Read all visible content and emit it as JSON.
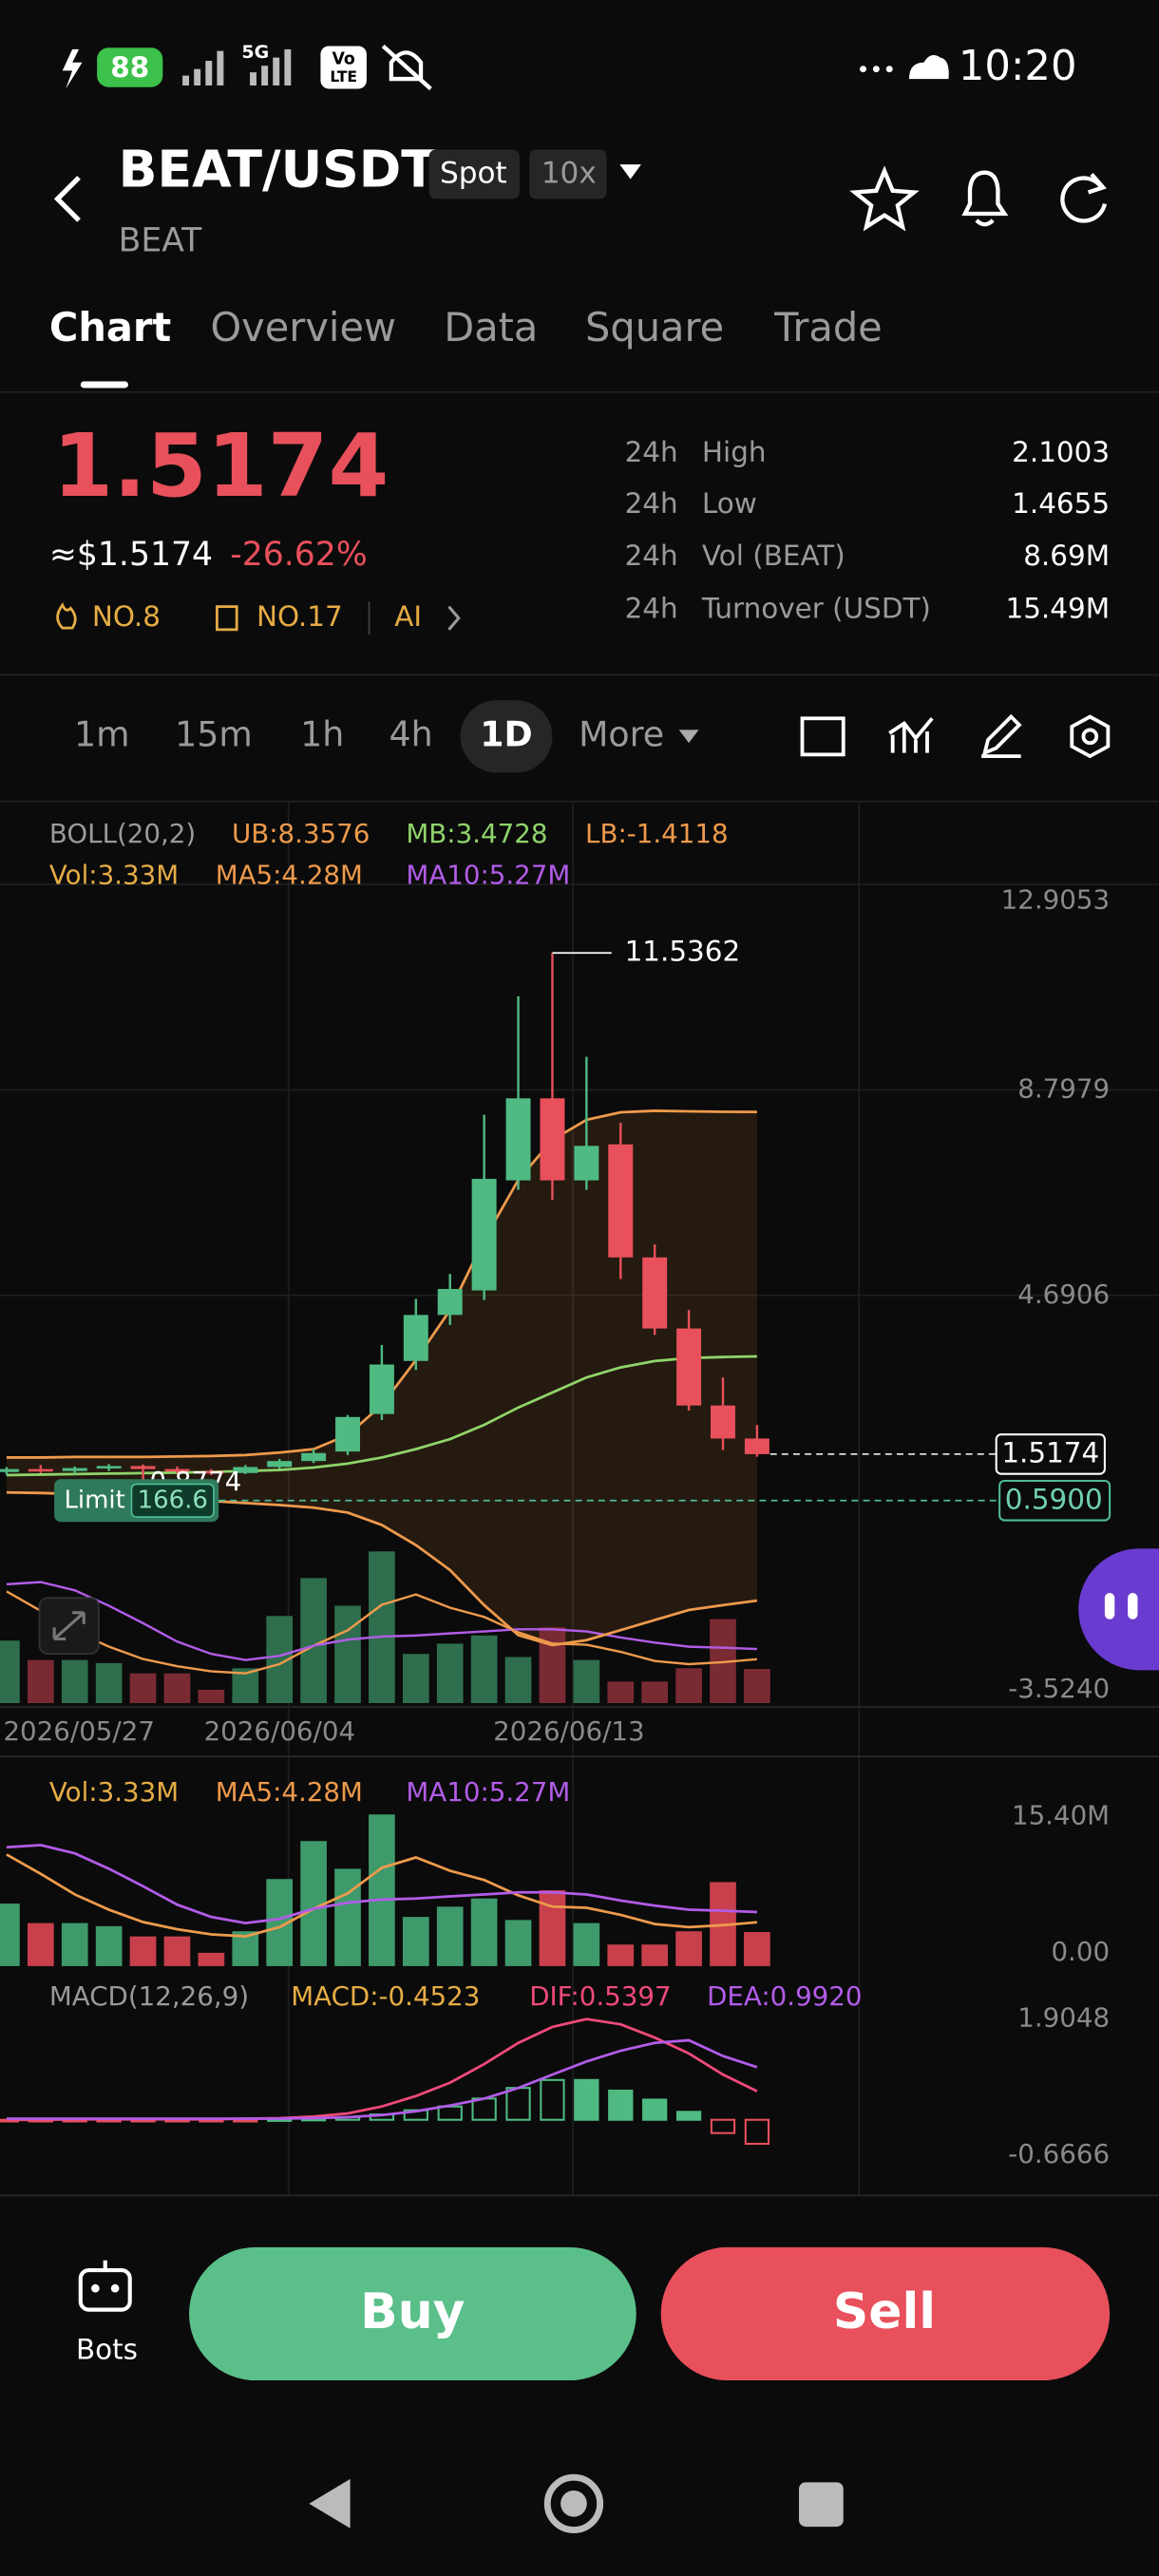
{
  "status_bar": {
    "battery": "88",
    "network": "5G",
    "volte_top": "Vo",
    "volte_bottom": "LTE",
    "time": "10:20"
  },
  "header": {
    "title": "BEAT/USDT",
    "market": "Spot",
    "leverage": "10x",
    "base": "BEAT"
  },
  "tabs": [
    "Chart",
    "Overview",
    "Data",
    "Square",
    "Trade"
  ],
  "ticker": {
    "price": 1.5174,
    "usd_price": "≈$1.5174",
    "change": "-26.62%",
    "rank_hot": "NO.8",
    "rank_category": "NO.17",
    "ai": "AI",
    "stats": [
      {
        "period": "24h",
        "label": "High",
        "value": 2.1003
      },
      {
        "period": "24h",
        "label": "Low",
        "value": 1.4655
      },
      {
        "period": "24h",
        "label": "Vol (BEAT)",
        "value": "8.69M"
      },
      {
        "period": "24h",
        "label": "Turnover (USDT)",
        "value": "15.49M"
      }
    ]
  },
  "intervals": [
    "1m",
    "15m",
    "1h",
    "4h",
    "1D",
    "More"
  ],
  "kline": {
    "boll_legend": [
      "BOLL(20,2)",
      "UB:8.3576",
      "MB:3.4728",
      "LB:-1.4118"
    ],
    "vol_legend": [
      "Vol:3.33M",
      "MA5:4.28M",
      "MA10:5.27M"
    ],
    "ylim": [
      -3.524,
      12.9053
    ],
    "yticks": [
      12.9053,
      8.7979,
      4.6906,
      {
        "value": -3.524,
        "label": "-3.5240"
      }
    ],
    "candles": [
      [
        1.16,
        1.26,
        1.1,
        1.22
      ],
      [
        1.22,
        1.3,
        1.14,
        1.18
      ],
      [
        1.18,
        1.27,
        1.12,
        1.24
      ],
      [
        1.24,
        1.32,
        1.18,
        1.28
      ],
      [
        1.28,
        1.31,
        0.8774,
        1.22
      ],
      [
        1.22,
        1.27,
        1.14,
        1.18
      ],
      [
        1.18,
        1.22,
        1.1,
        1.14
      ],
      [
        1.14,
        1.3,
        1.12,
        1.26
      ],
      [
        1.26,
        1.42,
        1.22,
        1.38
      ],
      [
        1.38,
        1.62,
        1.34,
        1.54
      ],
      [
        1.57,
        2.3,
        1.5,
        2.26
      ],
      [
        2.32,
        3.7,
        2.2,
        3.31
      ],
      [
        3.38,
        4.62,
        3.2,
        4.3
      ],
      [
        4.3,
        5.12,
        4.1,
        4.82
      ],
      [
        4.79,
        8.3,
        4.6,
        7.02
      ],
      [
        6.99,
        10.67,
        6.8,
        8.63
      ],
      [
        8.63,
        11.5362,
        6.6,
        6.99
      ],
      [
        6.99,
        9.46,
        6.8,
        7.68
      ],
      [
        7.71,
        8.14,
        5.02,
        5.45
      ],
      [
        5.45,
        5.71,
        3.9,
        4.03
      ],
      [
        4.03,
        4.4,
        2.39,
        2.49
      ],
      [
        2.49,
        3.05,
        1.6,
        1.83
      ],
      [
        1.83,
        2.1,
        1.4655,
        1.5174
      ]
    ],
    "boll": {
      "ub": [
        1.45,
        1.45,
        1.46,
        1.46,
        1.46,
        1.47,
        1.48,
        1.5,
        1.55,
        1.62,
        1.9,
        2.5,
        3.4,
        4.4,
        5.8,
        7.0,
        7.8,
        8.2,
        8.35,
        8.38,
        8.37,
        8.36,
        8.3576
      ],
      "mb": [
        1.1,
        1.11,
        1.12,
        1.13,
        1.14,
        1.15,
        1.16,
        1.18,
        1.2,
        1.25,
        1.33,
        1.45,
        1.62,
        1.82,
        2.1,
        2.45,
        2.75,
        3.05,
        3.25,
        3.38,
        3.44,
        3.46,
        3.4728
      ],
      "lb": [
        0.75,
        0.74,
        0.72,
        0.7,
        0.66,
        0.62,
        0.58,
        0.54,
        0.5,
        0.45,
        0.35,
        0.1,
        -0.3,
        -0.8,
        -1.5,
        -2.1,
        -2.3,
        -2.2,
        -2.0,
        -1.8,
        -1.6,
        -1.5,
        -1.4118
      ]
    },
    "dates": [
      "2026/05/27",
      "2026/06/04",
      "2026/06/13"
    ],
    "limit": {
      "label": "Limit",
      "amount": 166.6,
      "price": {
        "value": 0.59,
        "label": "0.5900"
      }
    }
  },
  "volume": {
    "legend": [
      "Vol:3.33M",
      "MA5:4.28M",
      "MA10:5.27M"
    ],
    "ylim": [
      0,
      15.4
    ],
    "yticks": [
      {
        "value": 15.4,
        "label": "15.40M"
      },
      {
        "value": 0,
        "label": "0.00"
      }
    ],
    "values": [
      6.1,
      4.2,
      4.2,
      3.9,
      2.9,
      2.9,
      1.3,
      3.4,
      8.5,
      12.2,
      9.5,
      14.8,
      4.8,
      5.8,
      6.6,
      4.5,
      7.4,
      4.2,
      2.1,
      2.1,
      3.4,
      8.2,
      3.33
    ],
    "ma5": [
      10.9,
      9.0,
      7.0,
      5.5,
      4.3,
      3.6,
      3.1,
      2.9,
      3.8,
      5.6,
      7.1,
      9.6,
      10.6,
      9.3,
      8.4,
      6.9,
      5.8,
      5.7,
      5.0,
      4.1,
      3.8,
      4.0,
      4.28
    ],
    "ma10": [
      11.6,
      11.8,
      11.0,
      9.5,
      7.8,
      6.0,
      4.8,
      4.2,
      4.6,
      5.6,
      6.2,
      6.5,
      6.6,
      6.8,
      7.0,
      7.2,
      7.2,
      7.0,
      6.4,
      5.9,
      5.5,
      5.4,
      5.27
    ]
  },
  "macd": {
    "legend": [
      "MACD(12,26,9)",
      "MACD:-0.4523",
      "DIF:0.5397",
      "DEA:0.9920"
    ],
    "ylim": [
      -0.6666,
      1.9048
    ],
    "yticks": [
      1.9048,
      -0.6666
    ],
    "hist": [
      -0.02,
      -0.02,
      -0.01,
      -0.01,
      -0.02,
      -0.02,
      -0.02,
      -0.01,
      0.01,
      0.02,
      0.05,
      0.1,
      0.18,
      0.25,
      0.4,
      0.6,
      0.75,
      0.75,
      0.55,
      0.38,
      0.15,
      -0.25,
      -0.4523
    ],
    "dif": [
      0.0,
      0.0,
      0.01,
      0.01,
      0.01,
      0.01,
      0.01,
      0.02,
      0.03,
      0.06,
      0.12,
      0.25,
      0.45,
      0.7,
      1.05,
      1.45,
      1.75,
      1.9,
      1.8,
      1.55,
      1.25,
      0.85,
      0.5397
    ],
    "dea": [
      0.02,
      0.02,
      0.02,
      0.02,
      0.02,
      0.02,
      0.02,
      0.02,
      0.02,
      0.03,
      0.05,
      0.09,
      0.16,
      0.27,
      0.4,
      0.6,
      0.85,
      1.1,
      1.3,
      1.45,
      1.5,
      1.2,
      0.992
    ]
  },
  "footer": {
    "bots": "Bots",
    "buy": "Buy",
    "sell": "Sell"
  }
}
